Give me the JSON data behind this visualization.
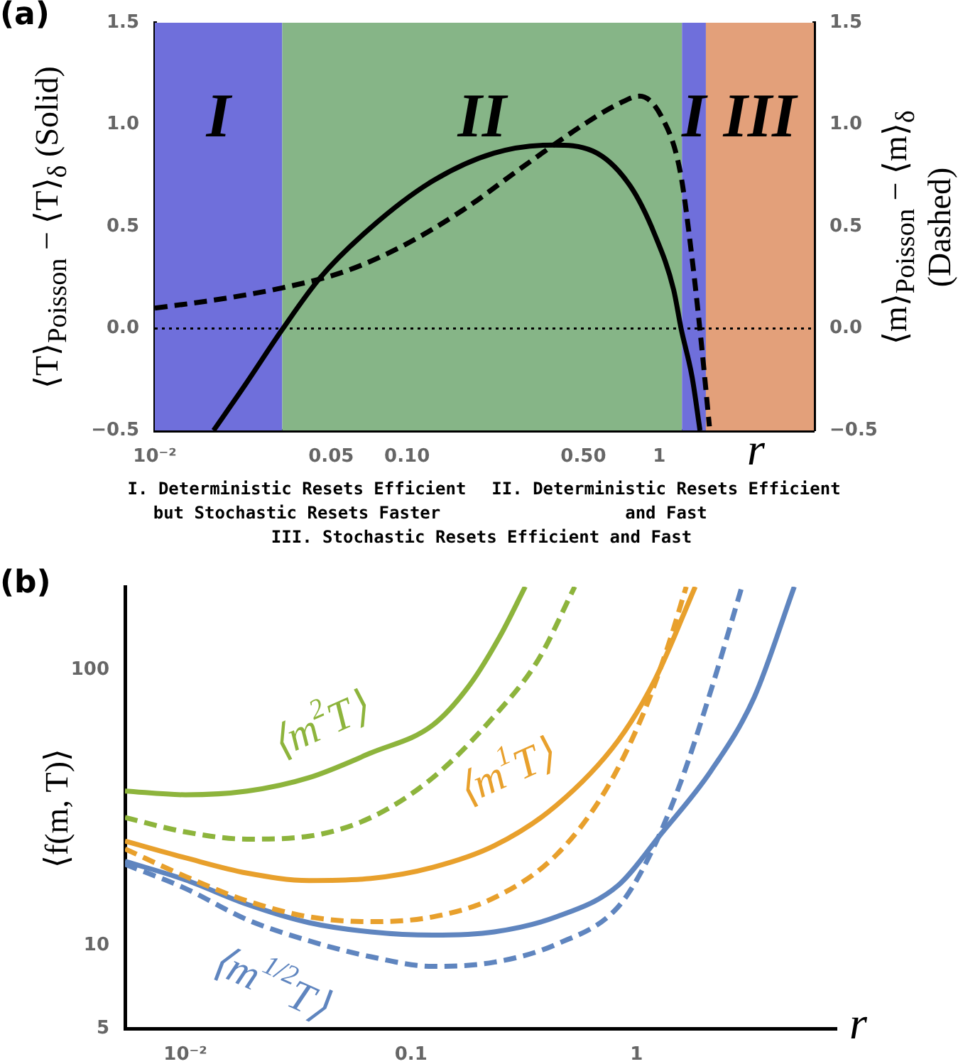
{
  "chart_data": [
    {
      "type": "line",
      "title": "(a)",
      "xlabel": "r",
      "ylabel": "⟨T⟩$_{Poisson}$ − ⟨T⟩$_{δ}$ (Solid)",
      "y2label": "⟨m⟩$_{Poisson}$ − ⟨m⟩$_{δ}$ (Dashed)",
      "log": "x",
      "xlim": [
        0.01,
        4.1
      ],
      "xticks": [
        {
          "value": 0.01,
          "label": "10⁻²"
        },
        0.05,
        {
          "value": 0.1,
          "label": "0.10"
        },
        {
          "value": 0.5,
          "label": "0.50"
        },
        1
      ],
      "ylim": [
        -0.5,
        1.5
      ],
      "yticks": [
        {
          "value": -0.5,
          "label": "−0.5"
        },
        {
          "value": 0,
          "label": "0.0"
        },
        0.5,
        {
          "value": 1,
          "label": "1.0"
        },
        1.5
      ],
      "y2lim": [
        -0.5,
        1.5
      ],
      "y2ticks": [
        {
          "value": -0.5,
          "label": "−0.5"
        },
        {
          "value": 0,
          "label": "0.0"
        },
        0.5,
        {
          "value": 1,
          "label": "1.0"
        },
        1.5
      ],
      "bands": [
        {
          "axis": "x",
          "from": 0.01,
          "to": 0.032,
          "label": "I",
          "color": "#6f6fdb"
        },
        {
          "axis": "x",
          "from": 0.032,
          "to": 1.23,
          "label": "II",
          "color": "#86b587"
        },
        {
          "axis": "x",
          "from": 1.23,
          "to": 1.53,
          "label": "I",
          "color": "#6f6fdb"
        },
        {
          "axis": "x",
          "from": 1.53,
          "to": 4.1,
          "label": "III",
          "color": "#e3a07a"
        }
      ],
      "ref_lines": [
        {
          "axis": "y",
          "value": 0,
          "color": "#000000",
          "line_style": "dotted"
        }
      ],
      "series": [
        {
          "color": "#000000",
          "line_style": "solid",
          "x": [
            0.0171,
            0.023,
            0.0322,
            0.0453,
            0.0711,
            0.125,
            0.221,
            0.378,
            0.546,
            0.766,
            0.96,
            1.14,
            1.22,
            1.35,
            1.45
          ],
          "values": [
            -0.5,
            -0.27,
            0,
            0.25,
            0.49,
            0.72,
            0.86,
            0.9,
            0.87,
            0.7,
            0.46,
            0.19,
            0,
            -0.24,
            -0.5
          ]
        },
        {
          "color": "#000000",
          "line_style": "dashed",
          "x": [
            0.01,
            0.0173,
            0.0322,
            0.0567,
            0.0944,
            0.166,
            0.293,
            0.515,
            0.684,
            0.834,
            1.02,
            1.21,
            1.35,
            1.47,
            1.58
          ],
          "values": [
            0.1,
            0.14,
            0.2,
            0.28,
            0.4,
            0.58,
            0.8,
            1.01,
            1.1,
            1.14,
            1.04,
            0.77,
            0.34,
            -0.08,
            -0.48
          ]
        }
      ],
      "annotations": [
        "I. Deterministic Resets Efficient but Stochastic Resets Faster",
        "II. Deterministic Resets Efficient and Fast",
        "III. Stochastic Resets Efficient and Fast"
      ]
    },
    {
      "type": "line",
      "title": "(b)",
      "xlabel": "r",
      "ylabel": "⟨f(m, T)⟩",
      "log": "xy",
      "xlim": [
        0.0054,
        7.7
      ],
      "xticks": [
        {
          "value": 0.01,
          "label": "10⁻²"
        },
        0.1,
        1
      ],
      "ylim": [
        5,
        200
      ],
      "yticks": [
        5,
        10,
        100
      ],
      "series": [
        {
          "name": "⟨m$^{2}$T⟩",
          "color": "#8db43c",
          "line_style": "solid",
          "x": [
            0.0054,
            0.01,
            0.0188,
            0.0353,
            0.0664,
            0.125,
            0.182,
            0.249,
            0.321
          ],
          "values": [
            36.3,
            35.2,
            36.3,
            40.6,
            49.9,
            63,
            88,
            133,
            200
          ]
        },
        {
          "color": "#8db43c",
          "line_style": "dashed",
          "x": [
            0.0054,
            0.01,
            0.0188,
            0.0353,
            0.0664,
            0.125,
            0.234,
            0.365,
            0.532
          ],
          "values": [
            29.1,
            25.8,
            24.3,
            24.9,
            29.1,
            40.6,
            67.9,
            108,
            200
          ]
        },
        {
          "name": "⟨m$^{1}$T⟩",
          "color": "#e8a02c",
          "line_style": "solid",
          "x": [
            0.0054,
            0.01,
            0.0188,
            0.0353,
            0.0664,
            0.125,
            0.234,
            0.441,
            0.828,
            1.21,
            1.82
          ],
          "values": [
            23.9,
            20.8,
            18.3,
            17.2,
            17.5,
            19.2,
            23,
            32.2,
            55.3,
            92.5,
            200
          ]
        },
        {
          "color": "#e8a02c",
          "line_style": "dashed",
          "x": [
            0.0054,
            0.01,
            0.0188,
            0.0353,
            0.0664,
            0.125,
            0.234,
            0.441,
            0.73,
            1.06,
            1.37,
            1.66
          ],
          "values": [
            22.4,
            17.8,
            14.5,
            12.7,
            12.2,
            12.7,
            14.9,
            21.3,
            36.6,
            67.9,
            120,
            200
          ]
        },
        {
          "name": "⟨m$^{1/2}$T⟩",
          "color": "#5f85bf",
          "line_style": "solid",
          "x": [
            0.0054,
            0.01,
            0.0188,
            0.0353,
            0.0664,
            0.125,
            0.234,
            0.441,
            0.828,
            1.29,
            2.13,
            3.32,
            5.0
          ],
          "values": [
            20.2,
            17.3,
            14.1,
            12.1,
            11.2,
            10.9,
            11.2,
            12.7,
            16.5,
            25.5,
            42.8,
            79.3,
            200
          ]
        },
        {
          "color": "#5f85bf",
          "line_style": "dashed",
          "x": [
            0.0054,
            0.01,
            0.0188,
            0.0353,
            0.0664,
            0.125,
            0.234,
            0.441,
            0.828,
            1.13,
            1.56,
            2.13,
            2.93
          ],
          "values": [
            19.7,
            16.1,
            12.4,
            10.4,
            9.1,
            8.4,
            8.7,
            10.1,
            13.8,
            20.8,
            38.6,
            83.5,
            200
          ]
        }
      ]
    }
  ]
}
